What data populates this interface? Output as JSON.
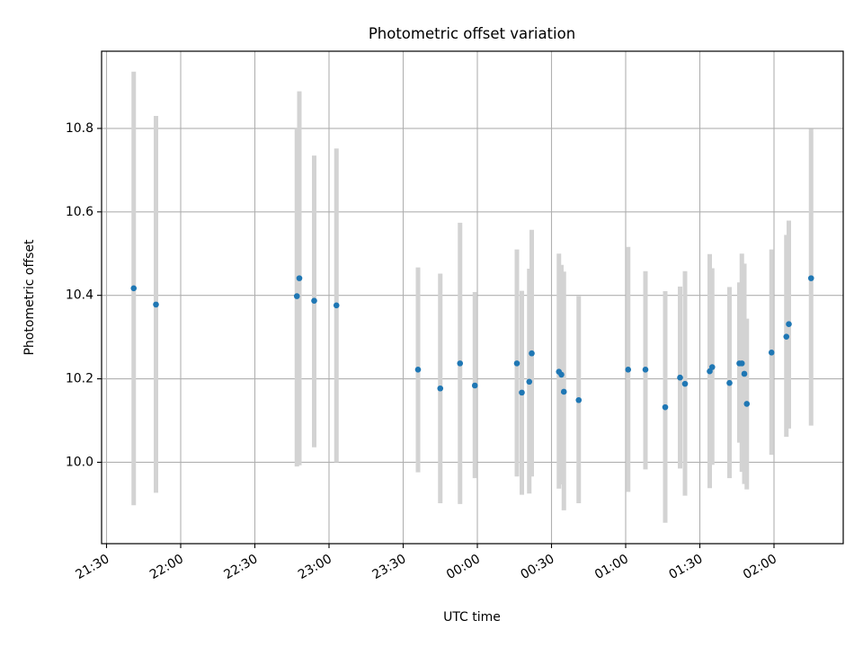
{
  "chart_data": {
    "type": "scatter",
    "title": "Photometric offset variation",
    "xlabel": "UTC time",
    "ylabel": "Photometric offset",
    "x_axis": {
      "kind": "time",
      "range": [
        "21:28",
        "02:28"
      ],
      "ticks": [
        "21:30",
        "22:00",
        "22:30",
        "23:00",
        "23:30",
        "00:00",
        "00:30",
        "01:00",
        "01:30",
        "02:00"
      ],
      "tick_label_rotation_deg": 30
    },
    "y_axis": {
      "range": [
        9.805,
        10.985
      ],
      "ticks": [
        10.0,
        10.2,
        10.4,
        10.6,
        10.8
      ],
      "tick_labels": [
        "10.0",
        "10.2",
        "10.4",
        "10.6",
        "10.8"
      ]
    },
    "grid": true,
    "colors": {
      "point": "#1f77b4",
      "error_bar": "#d3d3d3",
      "grid": "#b0b0b0"
    },
    "series": [
      {
        "error_bars": "vertical",
        "points": [
          {
            "x": "21:41",
            "y": 10.417,
            "ylo": 9.897,
            "yhi": 10.936
          },
          {
            "x": "21:50",
            "y": 10.378,
            "ylo": 9.927,
            "yhi": 10.83
          },
          {
            "x": "22:47",
            "y": 10.398,
            "ylo": 9.99,
            "yhi": 10.802
          },
          {
            "x": "22:48",
            "y": 10.441,
            "ylo": 9.993,
            "yhi": 10.889
          },
          {
            "x": "22:54",
            "y": 10.387,
            "ylo": 10.036,
            "yhi": 10.735
          },
          {
            "x": "23:03",
            "y": 10.376,
            "ylo": 10.0,
            "yhi": 10.752
          },
          {
            "x": "23:36",
            "y": 10.222,
            "ylo": 9.976,
            "yhi": 10.467
          },
          {
            "x": "23:45",
            "y": 10.177,
            "ylo": 9.902,
            "yhi": 10.452
          },
          {
            "x": "23:53",
            "y": 10.237,
            "ylo": 9.9,
            "yhi": 10.574
          },
          {
            "x": "23:59",
            "y": 10.184,
            "ylo": 9.962,
            "yhi": 10.408
          },
          {
            "x": "00:16",
            "y": 10.237,
            "ylo": 9.966,
            "yhi": 10.51
          },
          {
            "x": "00:18",
            "y": 10.167,
            "ylo": 9.922,
            "yhi": 10.411
          },
          {
            "x": "00:21",
            "y": 10.193,
            "ylo": 9.925,
            "yhi": 10.464
          },
          {
            "x": "00:22",
            "y": 10.261,
            "ylo": 9.966,
            "yhi": 10.557
          },
          {
            "x": "00:33",
            "y": 10.217,
            "ylo": 9.937,
            "yhi": 10.5
          },
          {
            "x": "00:34",
            "y": 10.21,
            "ylo": 9.947,
            "yhi": 10.473
          },
          {
            "x": "00:35",
            "y": 10.169,
            "ylo": 9.885,
            "yhi": 10.457
          },
          {
            "x": "00:41",
            "y": 10.149,
            "ylo": 9.902,
            "yhi": 10.398
          },
          {
            "x": "01:01",
            "y": 10.222,
            "ylo": 9.929,
            "yhi": 10.516
          },
          {
            "x": "01:08",
            "y": 10.222,
            "ylo": 9.983,
            "yhi": 10.458
          },
          {
            "x": "01:16",
            "y": 10.132,
            "ylo": 9.855,
            "yhi": 10.41
          },
          {
            "x": "01:22",
            "y": 10.203,
            "ylo": 9.985,
            "yhi": 10.421
          },
          {
            "x": "01:24",
            "y": 10.188,
            "ylo": 9.92,
            "yhi": 10.458
          },
          {
            "x": "01:34",
            "y": 10.218,
            "ylo": 9.938,
            "yhi": 10.499
          },
          {
            "x": "01:35",
            "y": 10.228,
            "ylo": 9.994,
            "yhi": 10.465
          },
          {
            "x": "01:42",
            "y": 10.19,
            "ylo": 9.962,
            "yhi": 10.42
          },
          {
            "x": "01:46",
            "y": 10.237,
            "ylo": 10.047,
            "yhi": 10.431
          },
          {
            "x": "01:47",
            "y": 10.237,
            "ylo": 9.977,
            "yhi": 10.5
          },
          {
            "x": "01:48",
            "y": 10.212,
            "ylo": 9.948,
            "yhi": 10.476
          },
          {
            "x": "01:49",
            "y": 10.14,
            "ylo": 9.935,
            "yhi": 10.344
          },
          {
            "x": "01:59",
            "y": 10.263,
            "ylo": 10.018,
            "yhi": 10.51
          },
          {
            "x": "02:05",
            "y": 10.301,
            "ylo": 10.061,
            "yhi": 10.545
          },
          {
            "x": "02:06",
            "y": 10.331,
            "ylo": 10.081,
            "yhi": 10.579
          },
          {
            "x": "02:15",
            "y": 10.441,
            "ylo": 10.088,
            "yhi": 10.799
          }
        ]
      }
    ]
  }
}
